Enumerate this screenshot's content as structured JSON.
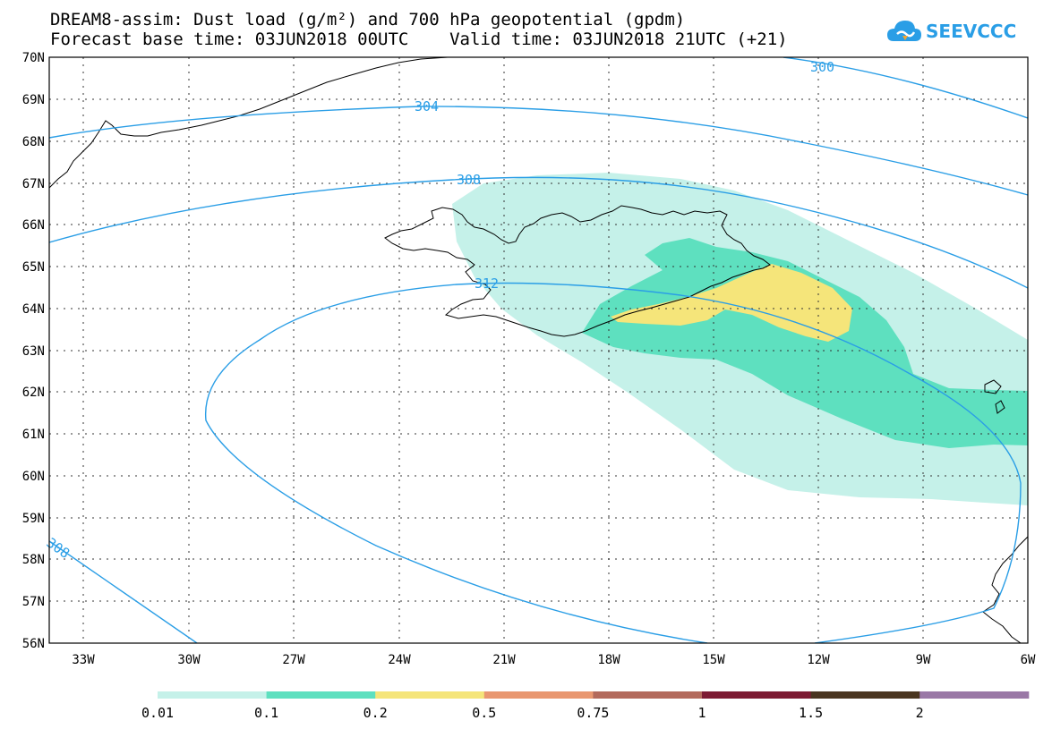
{
  "title_line1": "DREAM8-assim: Dust load (g/m²) and 700 hPa geopotential (gpdm)",
  "title_line2": "Forecast base time: 03JUN2018 00UTC    Valid time: 03JUN2018 21UTC (+21)",
  "logo_text": "SEEVCCC",
  "lat_labels": [
    "70N",
    "69N",
    "68N",
    "67N",
    "66N",
    "65N",
    "64N",
    "63N",
    "62N",
    "61N",
    "60N",
    "59N",
    "58N",
    "57N",
    "56N"
  ],
  "lon_labels": [
    "33W",
    "30W",
    "27W",
    "24W",
    "21W",
    "18W",
    "15W",
    "12W",
    "9W",
    "6W"
  ],
  "contour_labels": [
    "300",
    "304",
    "308",
    "312",
    "308"
  ],
  "colorbar": {
    "colors": [
      "#c5f1e9",
      "#5ee0bf",
      "#f5e57a",
      "#e99770",
      "#b36a5c",
      "#7d1a33",
      "#4a3520",
      "#9a78a6"
    ],
    "labels": [
      "0.01",
      "0.1",
      "0.2",
      "0.5",
      "0.75",
      "1",
      "1.5",
      "2"
    ]
  },
  "dust_colors": {
    "low": "#c5f1e9",
    "mid": "#5ee0bf",
    "high": "#f5e57a"
  },
  "contour_color": "#2a9ee6"
}
